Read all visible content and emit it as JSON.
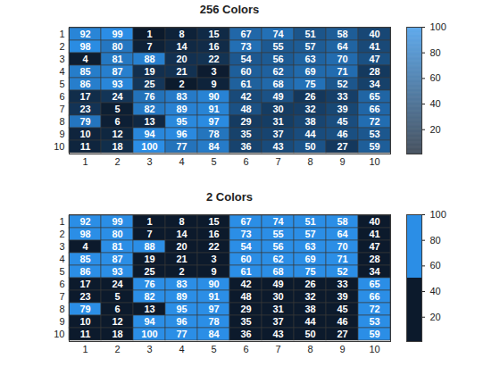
{
  "chart_data": [
    {
      "type": "heatmap",
      "title": "256 Colors",
      "x": [
        1,
        2,
        3,
        4,
        5,
        6,
        7,
        8,
        9,
        10
      ],
      "y": [
        1,
        2,
        3,
        4,
        5,
        6,
        7,
        8,
        9,
        10
      ],
      "cells": [
        [
          92,
          99,
          1,
          8,
          15,
          67,
          74,
          51,
          58,
          40
        ],
        [
          98,
          80,
          7,
          14,
          16,
          73,
          55,
          57,
          64,
          41
        ],
        [
          4,
          81,
          88,
          20,
          22,
          54,
          56,
          63,
          70,
          47
        ],
        [
          85,
          87,
          19,
          21,
          3,
          60,
          62,
          69,
          71,
          28
        ],
        [
          86,
          93,
          25,
          2,
          9,
          61,
          68,
          75,
          52,
          34
        ],
        [
          17,
          24,
          76,
          83,
          90,
          42,
          49,
          26,
          33,
          65
        ],
        [
          23,
          5,
          82,
          89,
          91,
          48,
          30,
          32,
          39,
          66
        ],
        [
          79,
          6,
          13,
          95,
          97,
          29,
          31,
          38,
          45,
          72
        ],
        [
          10,
          12,
          94,
          96,
          78,
          35,
          37,
          44,
          46,
          53
        ],
        [
          11,
          18,
          100,
          77,
          84,
          36,
          43,
          50,
          27,
          59
        ]
      ],
      "data_labels": true,
      "colormap": {
        "colors": [
          "#0c1a2c",
          "#2b8ee6"
        ],
        "levels": 256
      },
      "colorbar_range": [
        1,
        100
      ],
      "colorbar_ticks": [
        20,
        40,
        60,
        80,
        100
      ]
    },
    {
      "type": "heatmap",
      "title": "2 Colors",
      "x": [
        1,
        2,
        3,
        4,
        5,
        6,
        7,
        8,
        9,
        10
      ],
      "y": [
        1,
        2,
        3,
        4,
        5,
        6,
        7,
        8,
        9,
        10
      ],
      "cells": [
        [
          92,
          99,
          1,
          8,
          15,
          67,
          74,
          51,
          58,
          40
        ],
        [
          98,
          80,
          7,
          14,
          16,
          73,
          55,
          57,
          64,
          41
        ],
        [
          4,
          81,
          88,
          20,
          22,
          54,
          56,
          63,
          70,
          47
        ],
        [
          85,
          87,
          19,
          21,
          3,
          60,
          62,
          69,
          71,
          28
        ],
        [
          86,
          93,
          25,
          2,
          9,
          61,
          68,
          75,
          52,
          34
        ],
        [
          17,
          24,
          76,
          83,
          90,
          42,
          49,
          26,
          33,
          65
        ],
        [
          23,
          5,
          82,
          89,
          91,
          48,
          30,
          32,
          39,
          66
        ],
        [
          79,
          6,
          13,
          95,
          97,
          29,
          31,
          38,
          45,
          72
        ],
        [
          10,
          12,
          94,
          96,
          78,
          35,
          37,
          44,
          46,
          53
        ],
        [
          11,
          18,
          100,
          77,
          84,
          36,
          43,
          50,
          27,
          59
        ]
      ],
      "data_labels": true,
      "colormap": {
        "colors": [
          "#0c1a2c",
          "#2b8ee6"
        ],
        "levels": 2
      },
      "colorbar_range": [
        1,
        100
      ],
      "colorbar_ticks": [
        20,
        40,
        60,
        80,
        100
      ]
    }
  ]
}
